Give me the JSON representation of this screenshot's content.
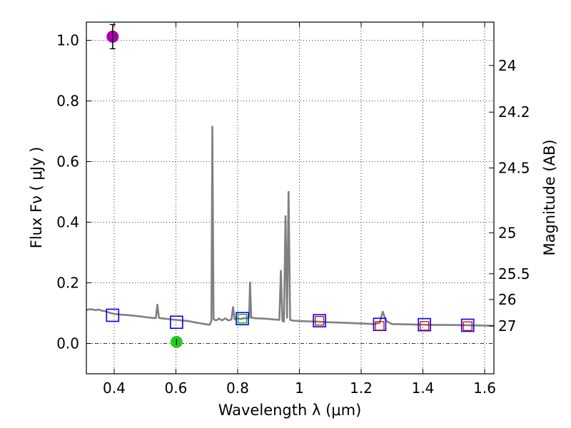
{
  "chart_data": {
    "type": "line",
    "title": "",
    "xlabel": "Wavelength  λ (μm)",
    "ylabel": "Flux  Fν  ( μJy )",
    "y2label": "Magnitude (AB)",
    "xlim": [
      0.31,
      1.63
    ],
    "ylim": [
      -0.1,
      1.06
    ],
    "grid": true,
    "x_ticks": [
      0.4,
      0.6,
      0.8,
      1.0,
      1.2,
      1.4,
      1.6
    ],
    "x_tick_labels": [
      "0.4",
      "0.6",
      "0.8",
      "1",
      "1.2",
      "1.4",
      "1.6"
    ],
    "y_ticks": [
      0.0,
      0.2,
      0.4,
      0.6,
      0.8,
      1.0
    ],
    "y_tick_labels": [
      "0.0",
      "0.2",
      "0.4",
      "0.6",
      "0.8",
      "1.0"
    ],
    "y2_ticks": [
      {
        "label": "24",
        "flux": 0.917
      },
      {
        "label": "24.2",
        "flux": 0.763
      },
      {
        "label": "24.5",
        "flux": 0.579
      },
      {
        "label": "25",
        "flux": 0.365
      },
      {
        "label": "25.5",
        "flux": 0.23
      },
      {
        "label": "26",
        "flux": 0.145
      },
      {
        "label": "27",
        "flux": 0.058
      }
    ],
    "zero_line": 0.0,
    "spectrum": {
      "name": "model spectrum",
      "color": "#808080",
      "points": [
        [
          0.31,
          0.11
        ],
        [
          0.32,
          0.113
        ],
        [
          0.33,
          0.112
        ],
        [
          0.34,
          0.11
        ],
        [
          0.35,
          0.112
        ],
        [
          0.36,
          0.108
        ],
        [
          0.37,
          0.107
        ],
        [
          0.38,
          0.103
        ],
        [
          0.39,
          0.1
        ],
        [
          0.4,
          0.098
        ],
        [
          0.42,
          0.095
        ],
        [
          0.44,
          0.094
        ],
        [
          0.46,
          0.092
        ],
        [
          0.48,
          0.09
        ],
        [
          0.5,
          0.087
        ],
        [
          0.52,
          0.085
        ],
        [
          0.535,
          0.084
        ],
        [
          0.54,
          0.128
        ],
        [
          0.545,
          0.084
        ],
        [
          0.56,
          0.082
        ],
        [
          0.58,
          0.08
        ],
        [
          0.6,
          0.078
        ],
        [
          0.62,
          0.076
        ],
        [
          0.64,
          0.074
        ],
        [
          0.66,
          0.07
        ],
        [
          0.68,
          0.066
        ],
        [
          0.7,
          0.063
        ],
        [
          0.71,
          0.062
        ],
        [
          0.715,
          0.075
        ],
        [
          0.718,
          0.715
        ],
        [
          0.722,
          0.08
        ],
        [
          0.73,
          0.076
        ],
        [
          0.74,
          0.082
        ],
        [
          0.75,
          0.076
        ],
        [
          0.76,
          0.083
        ],
        [
          0.77,
          0.076
        ],
        [
          0.78,
          0.079
        ],
        [
          0.785,
          0.12
        ],
        [
          0.79,
          0.08
        ],
        [
          0.8,
          0.082
        ],
        [
          0.81,
          0.081
        ],
        [
          0.82,
          0.083
        ],
        [
          0.83,
          0.083
        ],
        [
          0.837,
          0.085
        ],
        [
          0.84,
          0.202
        ],
        [
          0.844,
          0.085
        ],
        [
          0.86,
          0.083
        ],
        [
          0.88,
          0.082
        ],
        [
          0.9,
          0.081
        ],
        [
          0.92,
          0.079
        ],
        [
          0.935,
          0.078
        ],
        [
          0.94,
          0.24
        ],
        [
          0.945,
          0.075
        ],
        [
          0.95,
          0.072
        ],
        [
          0.955,
          0.42
        ],
        [
          0.96,
          0.085
        ],
        [
          0.965,
          0.5
        ],
        [
          0.97,
          0.078
        ],
        [
          0.98,
          0.075
        ],
        [
          1.0,
          0.074
        ],
        [
          1.03,
          0.073
        ],
        [
          1.06,
          0.072
        ],
        [
          1.1,
          0.07
        ],
        [
          1.15,
          0.068
        ],
        [
          1.2,
          0.066
        ],
        [
          1.24,
          0.064
        ],
        [
          1.26,
          0.068
        ],
        [
          1.27,
          0.105
        ],
        [
          1.28,
          0.075
        ],
        [
          1.3,
          0.064
        ],
        [
          1.35,
          0.063
        ],
        [
          1.4,
          0.062
        ],
        [
          1.45,
          0.061
        ],
        [
          1.5,
          0.061
        ],
        [
          1.55,
          0.06
        ],
        [
          1.6,
          0.059
        ],
        [
          1.63,
          0.058
        ]
      ]
    },
    "model_photometry_blue": {
      "name": "model photometry",
      "color": "#0000ff",
      "x": [
        0.395,
        0.602,
        0.815,
        1.065,
        1.26,
        1.405,
        1.545
      ],
      "y": [
        0.093,
        0.07,
        0.082,
        0.075,
        0.063,
        0.062,
        0.06
      ]
    },
    "observed_photometry_small": {
      "name": "observed photometry",
      "series": [
        {
          "color": "#00aa00",
          "x": [
            0.815
          ],
          "y": [
            0.082
          ]
        },
        {
          "color": "#dd0000",
          "x": [
            1.065,
            1.26,
            1.405,
            1.545
          ],
          "y": [
            0.075,
            0.058,
            0.058,
            0.057
          ]
        }
      ]
    },
    "detections": [
      {
        "name": "magenta point",
        "color": "#aa00aa",
        "x": 0.395,
        "y": 1.012,
        "err": 0.04
      },
      {
        "name": "green point",
        "color": "#22cc22",
        "x": 0.602,
        "y": 0.005,
        "err": 0.01
      }
    ]
  }
}
